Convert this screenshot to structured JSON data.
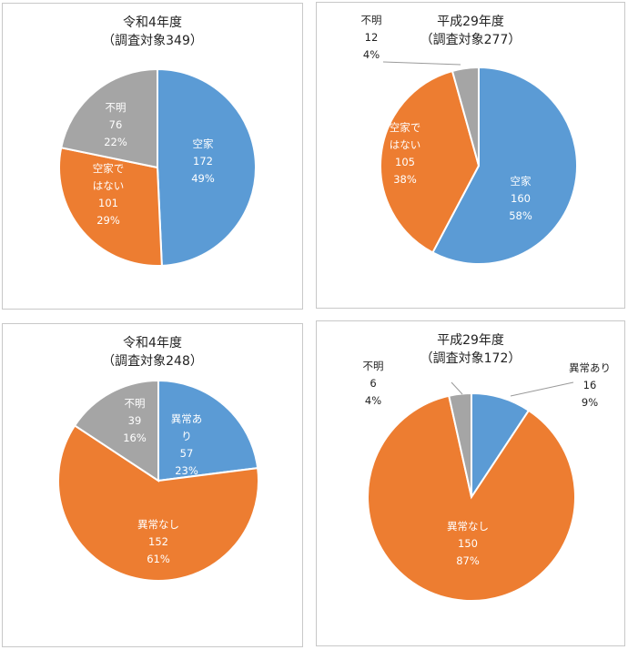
{
  "chart_data": [
    {
      "type": "pie",
      "title": "令和4年度",
      "subtitle": "（調査対象349）",
      "slices": [
        {
          "name": "空家",
          "value": 172,
          "percent": "49%",
          "color": "#5b9bd5",
          "label_color": "#ffffff",
          "label_lines": [
            "空家"
          ]
        },
        {
          "name": "空家ではない",
          "value": 101,
          "percent": "29%",
          "color": "#ed7d31",
          "label_color": "#ffffff",
          "label_lines": [
            "空家で",
            "はない"
          ]
        },
        {
          "name": "不明",
          "value": 76,
          "percent": "22%",
          "color": "#a5a5a5",
          "label_color": "#ffffff",
          "label_lines": [
            "不明"
          ]
        }
      ]
    },
    {
      "type": "pie",
      "title": "平成29年度",
      "subtitle": "（調査対象277）",
      "slices": [
        {
          "name": "空家",
          "value": 160,
          "percent": "58%",
          "color": "#5b9bd5",
          "label_color": "#ffffff",
          "label_lines": [
            "空家"
          ]
        },
        {
          "name": "空家ではない",
          "value": 105,
          "percent": "38%",
          "color": "#ed7d31",
          "label_color": "#ffffff",
          "label_lines": [
            "空家で",
            "はない"
          ]
        },
        {
          "name": "不明",
          "value": 12,
          "percent": "4%",
          "color": "#a5a5a5",
          "label_color": "#222222",
          "label_lines": [
            "不明"
          ]
        }
      ]
    },
    {
      "type": "pie",
      "title": "令和4年度",
      "subtitle": "（調査対象248）",
      "slices": [
        {
          "name": "異常あり",
          "value": 57,
          "percent": "23%",
          "color": "#5b9bd5",
          "label_color": "#ffffff",
          "label_lines": [
            "異常あ",
            "り"
          ]
        },
        {
          "name": "異常なし",
          "value": 152,
          "percent": "61%",
          "color": "#ed7d31",
          "label_color": "#ffffff",
          "label_lines": [
            "異常なし"
          ]
        },
        {
          "name": "不明",
          "value": 39,
          "percent": "16%",
          "color": "#a5a5a5",
          "label_color": "#ffffff",
          "label_lines": [
            "不明"
          ]
        }
      ]
    },
    {
      "type": "pie",
      "title": "平成29年度",
      "subtitle": "（調査対象172）",
      "slices": [
        {
          "name": "異常あり",
          "value": 16,
          "percent": "9%",
          "color": "#5b9bd5",
          "label_color": "#222222",
          "label_lines": [
            "異常あり"
          ]
        },
        {
          "name": "異常なし",
          "value": 150,
          "percent": "87%",
          "color": "#ed7d31",
          "label_color": "#ffffff",
          "label_lines": [
            "異常なし"
          ]
        },
        {
          "name": "不明",
          "value": 6,
          "percent": "4%",
          "color": "#a5a5a5",
          "label_color": "#222222",
          "label_lines": [
            "不明"
          ]
        }
      ]
    }
  ]
}
